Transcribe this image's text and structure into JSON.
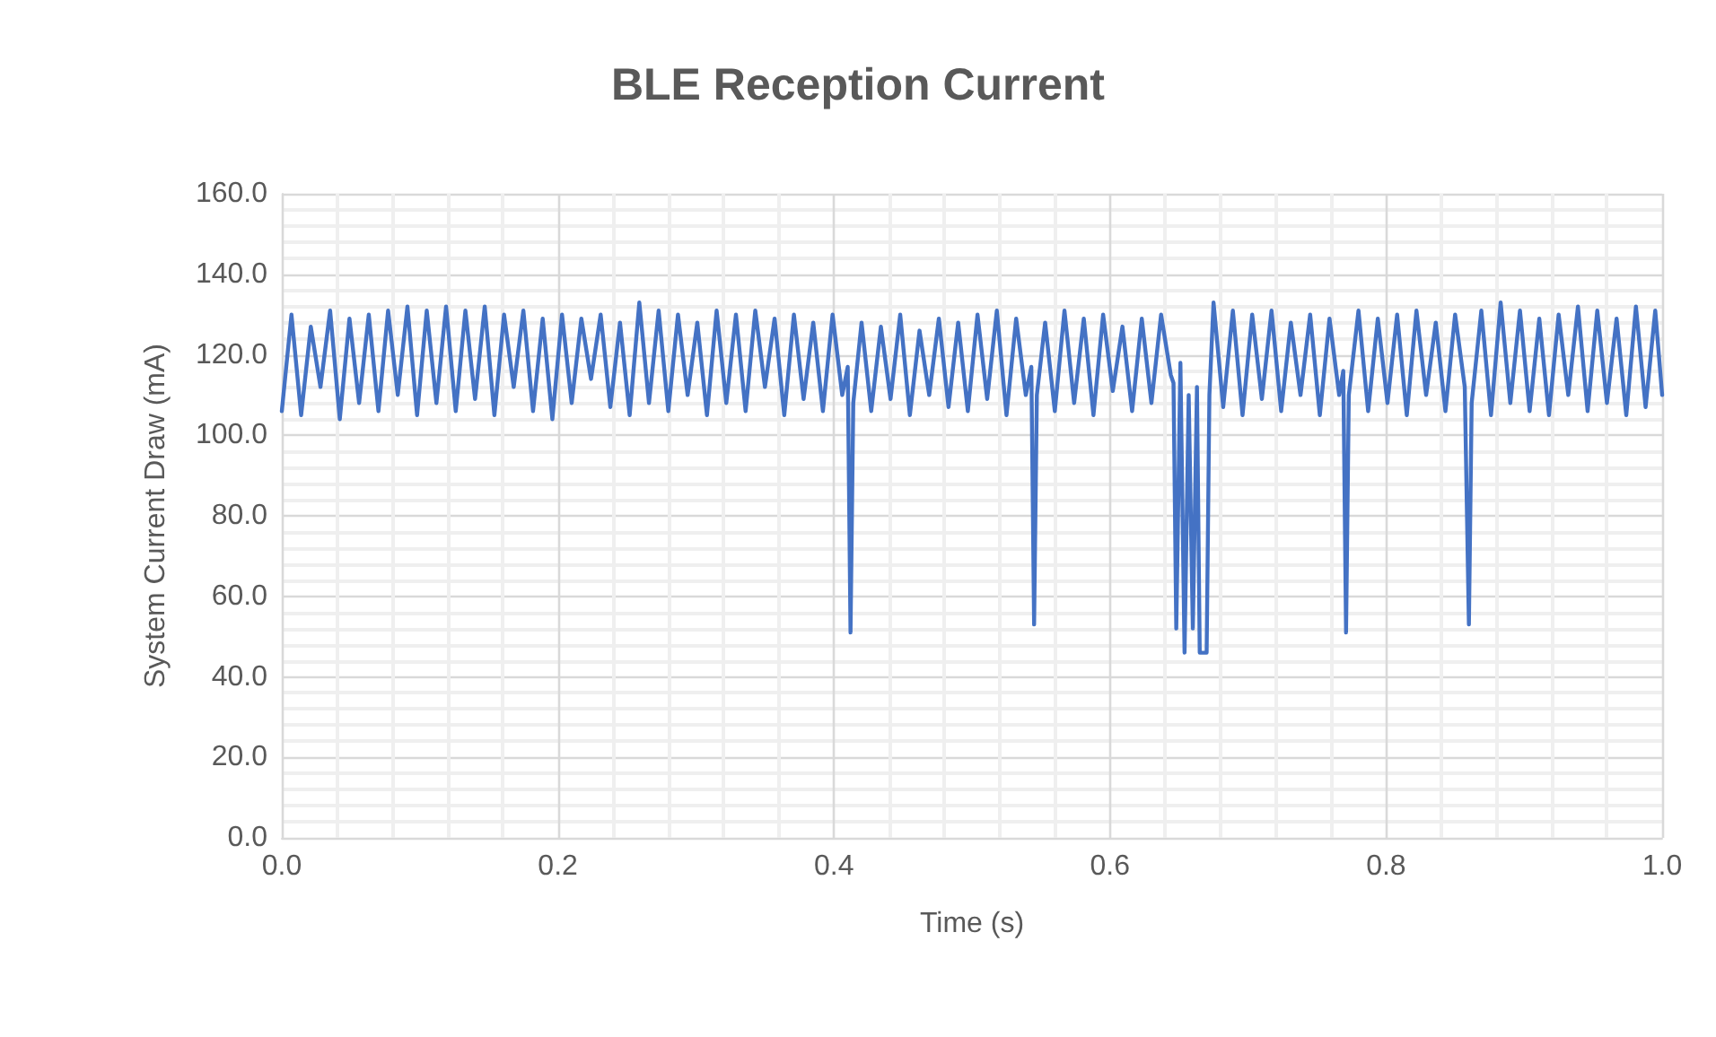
{
  "chart_data": {
    "type": "line",
    "title": "BLE Reception Current",
    "xlabel": "Time (s)",
    "ylabel": "System Current Draw (mA)",
    "xlim": [
      0,
      1
    ],
    "xticks": [
      {
        "value": 0,
        "label": "0.0"
      },
      {
        "value": 0.2,
        "label": "0.2"
      },
      {
        "value": 0.4,
        "label": "0.4"
      },
      {
        "value": 0.6,
        "label": "0.6"
      },
      {
        "value": 0.8,
        "label": "0.8"
      },
      {
        "value": 1,
        "label": "1.0"
      }
    ],
    "ylim": [
      0,
      160
    ],
    "yticks": [
      {
        "value": 0,
        "label": "0.0"
      },
      {
        "value": 20,
        "label": "20.0"
      },
      {
        "value": 40,
        "label": "40.0"
      },
      {
        "value": 60,
        "label": "60.0"
      },
      {
        "value": 80,
        "label": "80.0"
      },
      {
        "value": 100,
        "label": "100.0"
      },
      {
        "value": 120,
        "label": "120.0"
      },
      {
        "value": 140,
        "label": "140.0"
      },
      {
        "value": 160,
        "label": "160.0"
      }
    ],
    "grid": true,
    "marker": "none",
    "line_style": "solid",
    "series": [
      {
        "color": "#4472c4",
        "x": [
          0.0,
          0.007,
          0.014,
          0.021,
          0.028,
          0.035,
          0.042,
          0.049,
          0.056,
          0.063,
          0.07,
          0.077,
          0.084,
          0.091,
          0.098,
          0.105,
          0.112,
          0.119,
          0.126,
          0.133,
          0.14,
          0.147,
          0.154,
          0.161,
          0.168,
          0.175,
          0.182,
          0.189,
          0.196,
          0.203,
          0.21,
          0.217,
          0.224,
          0.231,
          0.238,
          0.245,
          0.252,
          0.259,
          0.266,
          0.273,
          0.28,
          0.287,
          0.294,
          0.301,
          0.308,
          0.315,
          0.322,
          0.329,
          0.336,
          0.343,
          0.35,
          0.357,
          0.364,
          0.371,
          0.378,
          0.385,
          0.392,
          0.399,
          0.406,
          0.41,
          0.412,
          0.414,
          0.42,
          0.427,
          0.434,
          0.441,
          0.448,
          0.455,
          0.462,
          0.469,
          0.476,
          0.483,
          0.49,
          0.497,
          0.504,
          0.511,
          0.518,
          0.525,
          0.532,
          0.539,
          0.543,
          0.545,
          0.547,
          0.553,
          0.56,
          0.567,
          0.574,
          0.581,
          0.588,
          0.595,
          0.602,
          0.609,
          0.616,
          0.623,
          0.63,
          0.637,
          0.644,
          0.646,
          0.648,
          0.651,
          0.654,
          0.657,
          0.66,
          0.663,
          0.665,
          0.67,
          0.672,
          0.675,
          0.682,
          0.689,
          0.696,
          0.703,
          0.71,
          0.717,
          0.724,
          0.731,
          0.738,
          0.745,
          0.752,
          0.759,
          0.766,
          0.769,
          0.771,
          0.773,
          0.78,
          0.787,
          0.794,
          0.801,
          0.808,
          0.815,
          0.822,
          0.829,
          0.836,
          0.843,
          0.85,
          0.857,
          0.86,
          0.862,
          0.869,
          0.876,
          0.883,
          0.89,
          0.897,
          0.904,
          0.911,
          0.918,
          0.925,
          0.932,
          0.939,
          0.946,
          0.953,
          0.96,
          0.967,
          0.974,
          0.981,
          0.988,
          0.995,
          1.0
        ],
        "values": [
          106,
          130,
          105,
          127,
          112,
          131,
          104,
          129,
          108,
          130,
          106,
          131,
          110,
          132,
          105,
          131,
          108,
          132,
          106,
          131,
          109,
          132,
          105,
          130,
          112,
          131,
          106,
          129,
          104,
          130,
          108,
          129,
          114,
          130,
          107,
          128,
          105,
          133,
          108,
          131,
          106,
          130,
          110,
          128,
          105,
          131,
          108,
          130,
          106,
          131,
          112,
          129,
          105,
          130,
          109,
          128,
          106,
          130,
          110,
          117,
          51,
          108,
          128,
          106,
          127,
          109,
          130,
          105,
          126,
          110,
          129,
          107,
          128,
          106,
          130,
          109,
          131,
          105,
          129,
          110,
          117,
          53,
          110,
          128,
          106,
          131,
          108,
          129,
          105,
          130,
          111,
          127,
          106,
          129,
          108,
          130,
          115,
          113,
          52,
          118,
          46,
          110,
          52,
          112,
          46,
          46,
          110,
          133,
          107,
          131,
          105,
          130,
          109,
          131,
          106,
          128,
          110,
          130,
          105,
          129,
          110,
          116,
          51,
          110,
          131,
          106,
          129,
          108,
          130,
          105,
          131,
          110,
          128,
          106,
          130,
          112,
          53,
          108,
          131,
          105,
          133,
          108,
          131,
          106,
          129,
          105,
          130,
          110,
          132,
          106,
          131,
          108,
          129,
          105,
          132,
          107,
          131,
          110
        ]
      }
    ]
  }
}
